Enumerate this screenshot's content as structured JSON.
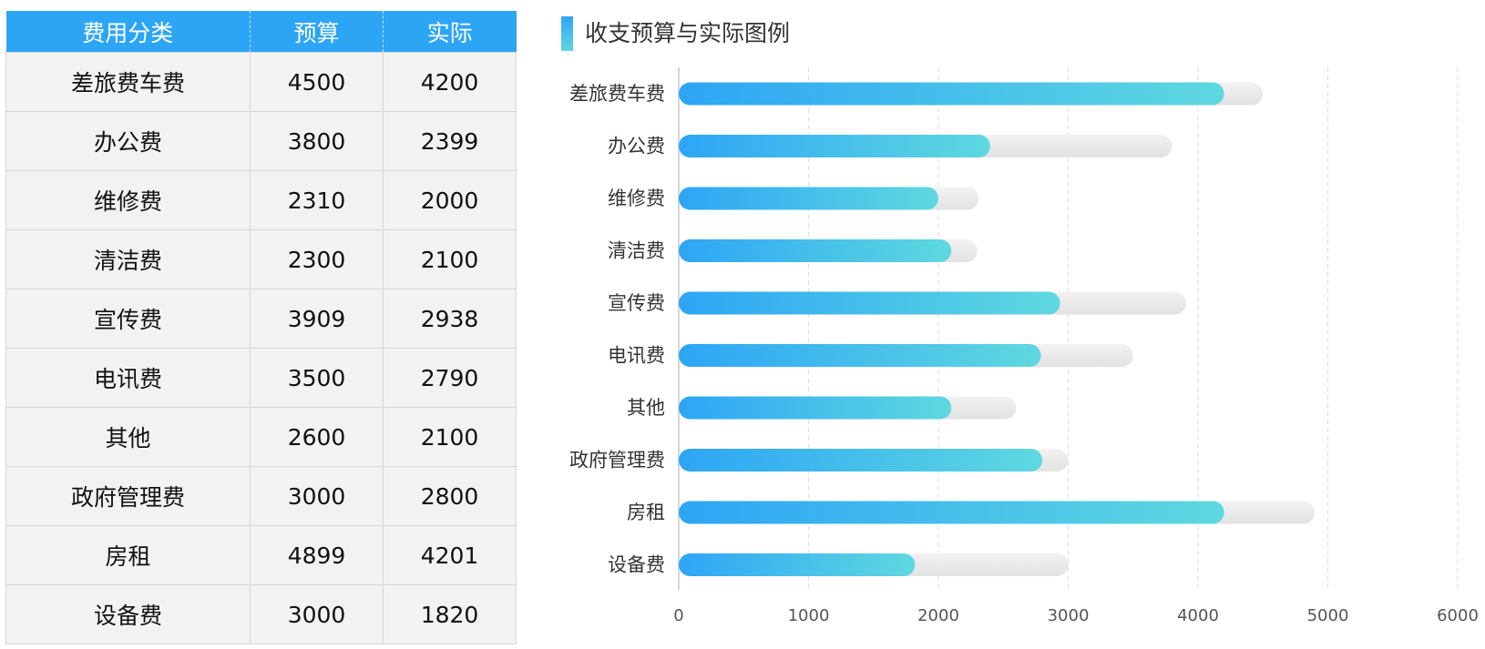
{
  "table": {
    "headers": [
      "费用分类",
      "预算",
      "实际"
    ],
    "rows": [
      [
        "差旅费车费",
        "4500",
        "4200"
      ],
      [
        "办公费",
        "3800",
        "2399"
      ],
      [
        "维修费",
        "2310",
        "2000"
      ],
      [
        "清洁费",
        "2300",
        "2100"
      ],
      [
        "宣传费",
        "3909",
        "2938"
      ],
      [
        "电讯费",
        "3500",
        "2790"
      ],
      [
        "其他",
        "2600",
        "2100"
      ],
      [
        "政府管理费",
        "3000",
        "2800"
      ],
      [
        "房租",
        "4899",
        "4201"
      ],
      [
        "设备费",
        "3000",
        "1820"
      ]
    ]
  },
  "chart": {
    "title": "收支预算与实际图例"
  },
  "colors": {
    "accent": "#2da5f5",
    "accent_end": "#5fd8e0",
    "track": "#e9e9e9"
  },
  "chart_data": {
    "type": "bar",
    "orientation": "horizontal",
    "title": "收支预算与实际图例",
    "categories": [
      "差旅费车费",
      "办公费",
      "维修费",
      "清洁费",
      "宣传费",
      "电讯费",
      "其他",
      "政府管理费",
      "房租",
      "设备费"
    ],
    "series": [
      {
        "name": "预算",
        "values": [
          4500,
          3800,
          2310,
          2300,
          3909,
          3500,
          2600,
          3000,
          4899,
          3000
        ]
      },
      {
        "name": "实际",
        "values": [
          4200,
          2399,
          2000,
          2100,
          2938,
          2790,
          2100,
          2800,
          4201,
          1820
        ]
      }
    ],
    "xlim": [
      0,
      6000
    ],
    "xticks": [
      "0",
      "1000",
      "2000",
      "3000",
      "4000",
      "5000",
      "6000"
    ],
    "grid": true,
    "xlabel": "",
    "ylabel": ""
  }
}
